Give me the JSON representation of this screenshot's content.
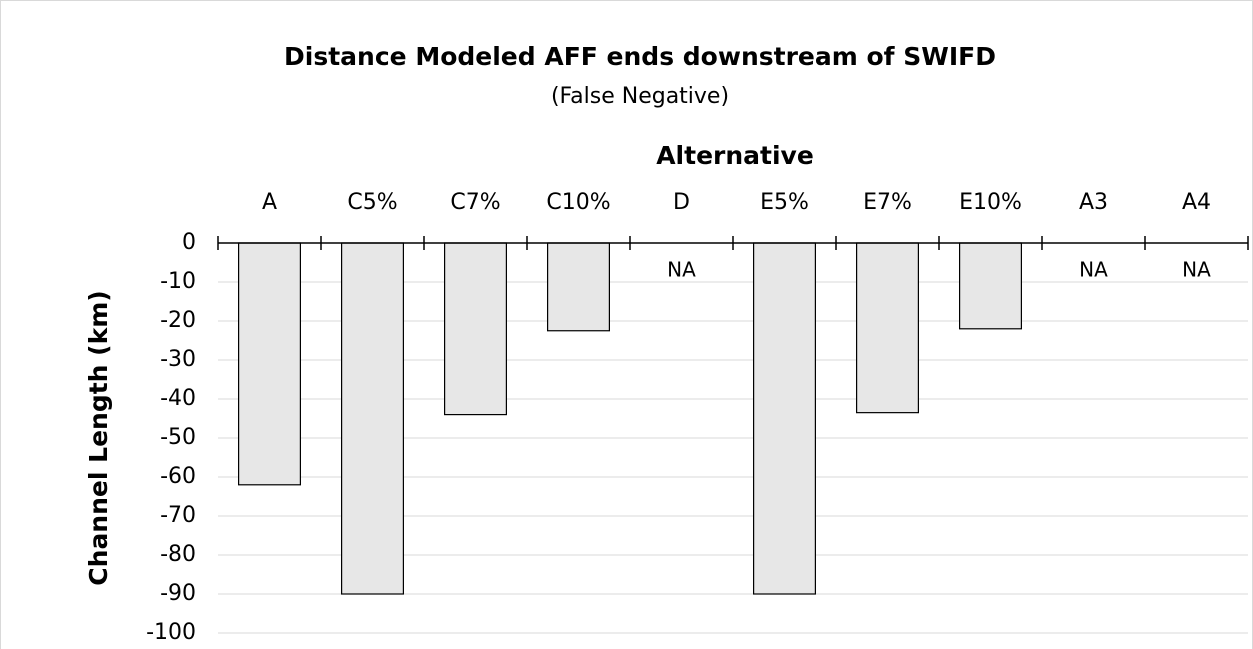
{
  "chart_data": {
    "type": "bar",
    "title": "Distance Modeled AFF ends downstream of SWIFD",
    "subtitle": "(False Negative)",
    "x_label": "Alternative",
    "y_label": "Channel Length (km)",
    "categories": [
      "A",
      "C5%",
      "C7%",
      "C10%",
      "D",
      "E5%",
      "E7%",
      "E10%",
      "A3",
      "A4"
    ],
    "values": [
      -62,
      -90,
      -44,
      -22.5,
      null,
      -90,
      -43.5,
      -22,
      null,
      null
    ],
    "value_labels": [
      null,
      null,
      null,
      null,
      "NA",
      null,
      null,
      null,
      "NA",
      "NA"
    ],
    "color": "#e7e7e7",
    "ylim": [
      -100,
      0
    ],
    "yticks": [
      0,
      -10,
      -20,
      -30,
      -40,
      -50,
      -60,
      -70,
      -80,
      -90,
      -100
    ],
    "grid": true
  }
}
